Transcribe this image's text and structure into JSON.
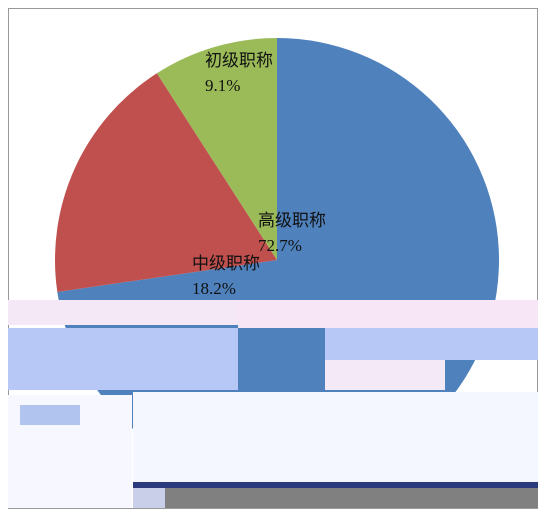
{
  "chart_data": {
    "type": "pie",
    "categories": [
      "高级职称",
      "中级职称",
      "初级职称"
    ],
    "values": [
      72.7,
      18.2,
      9.1
    ],
    "value_labels": [
      "72.7%",
      "18.2%",
      "9.1%"
    ],
    "colors": [
      "#4f81bd",
      "#c0504d",
      "#9bbb59"
    ]
  }
}
